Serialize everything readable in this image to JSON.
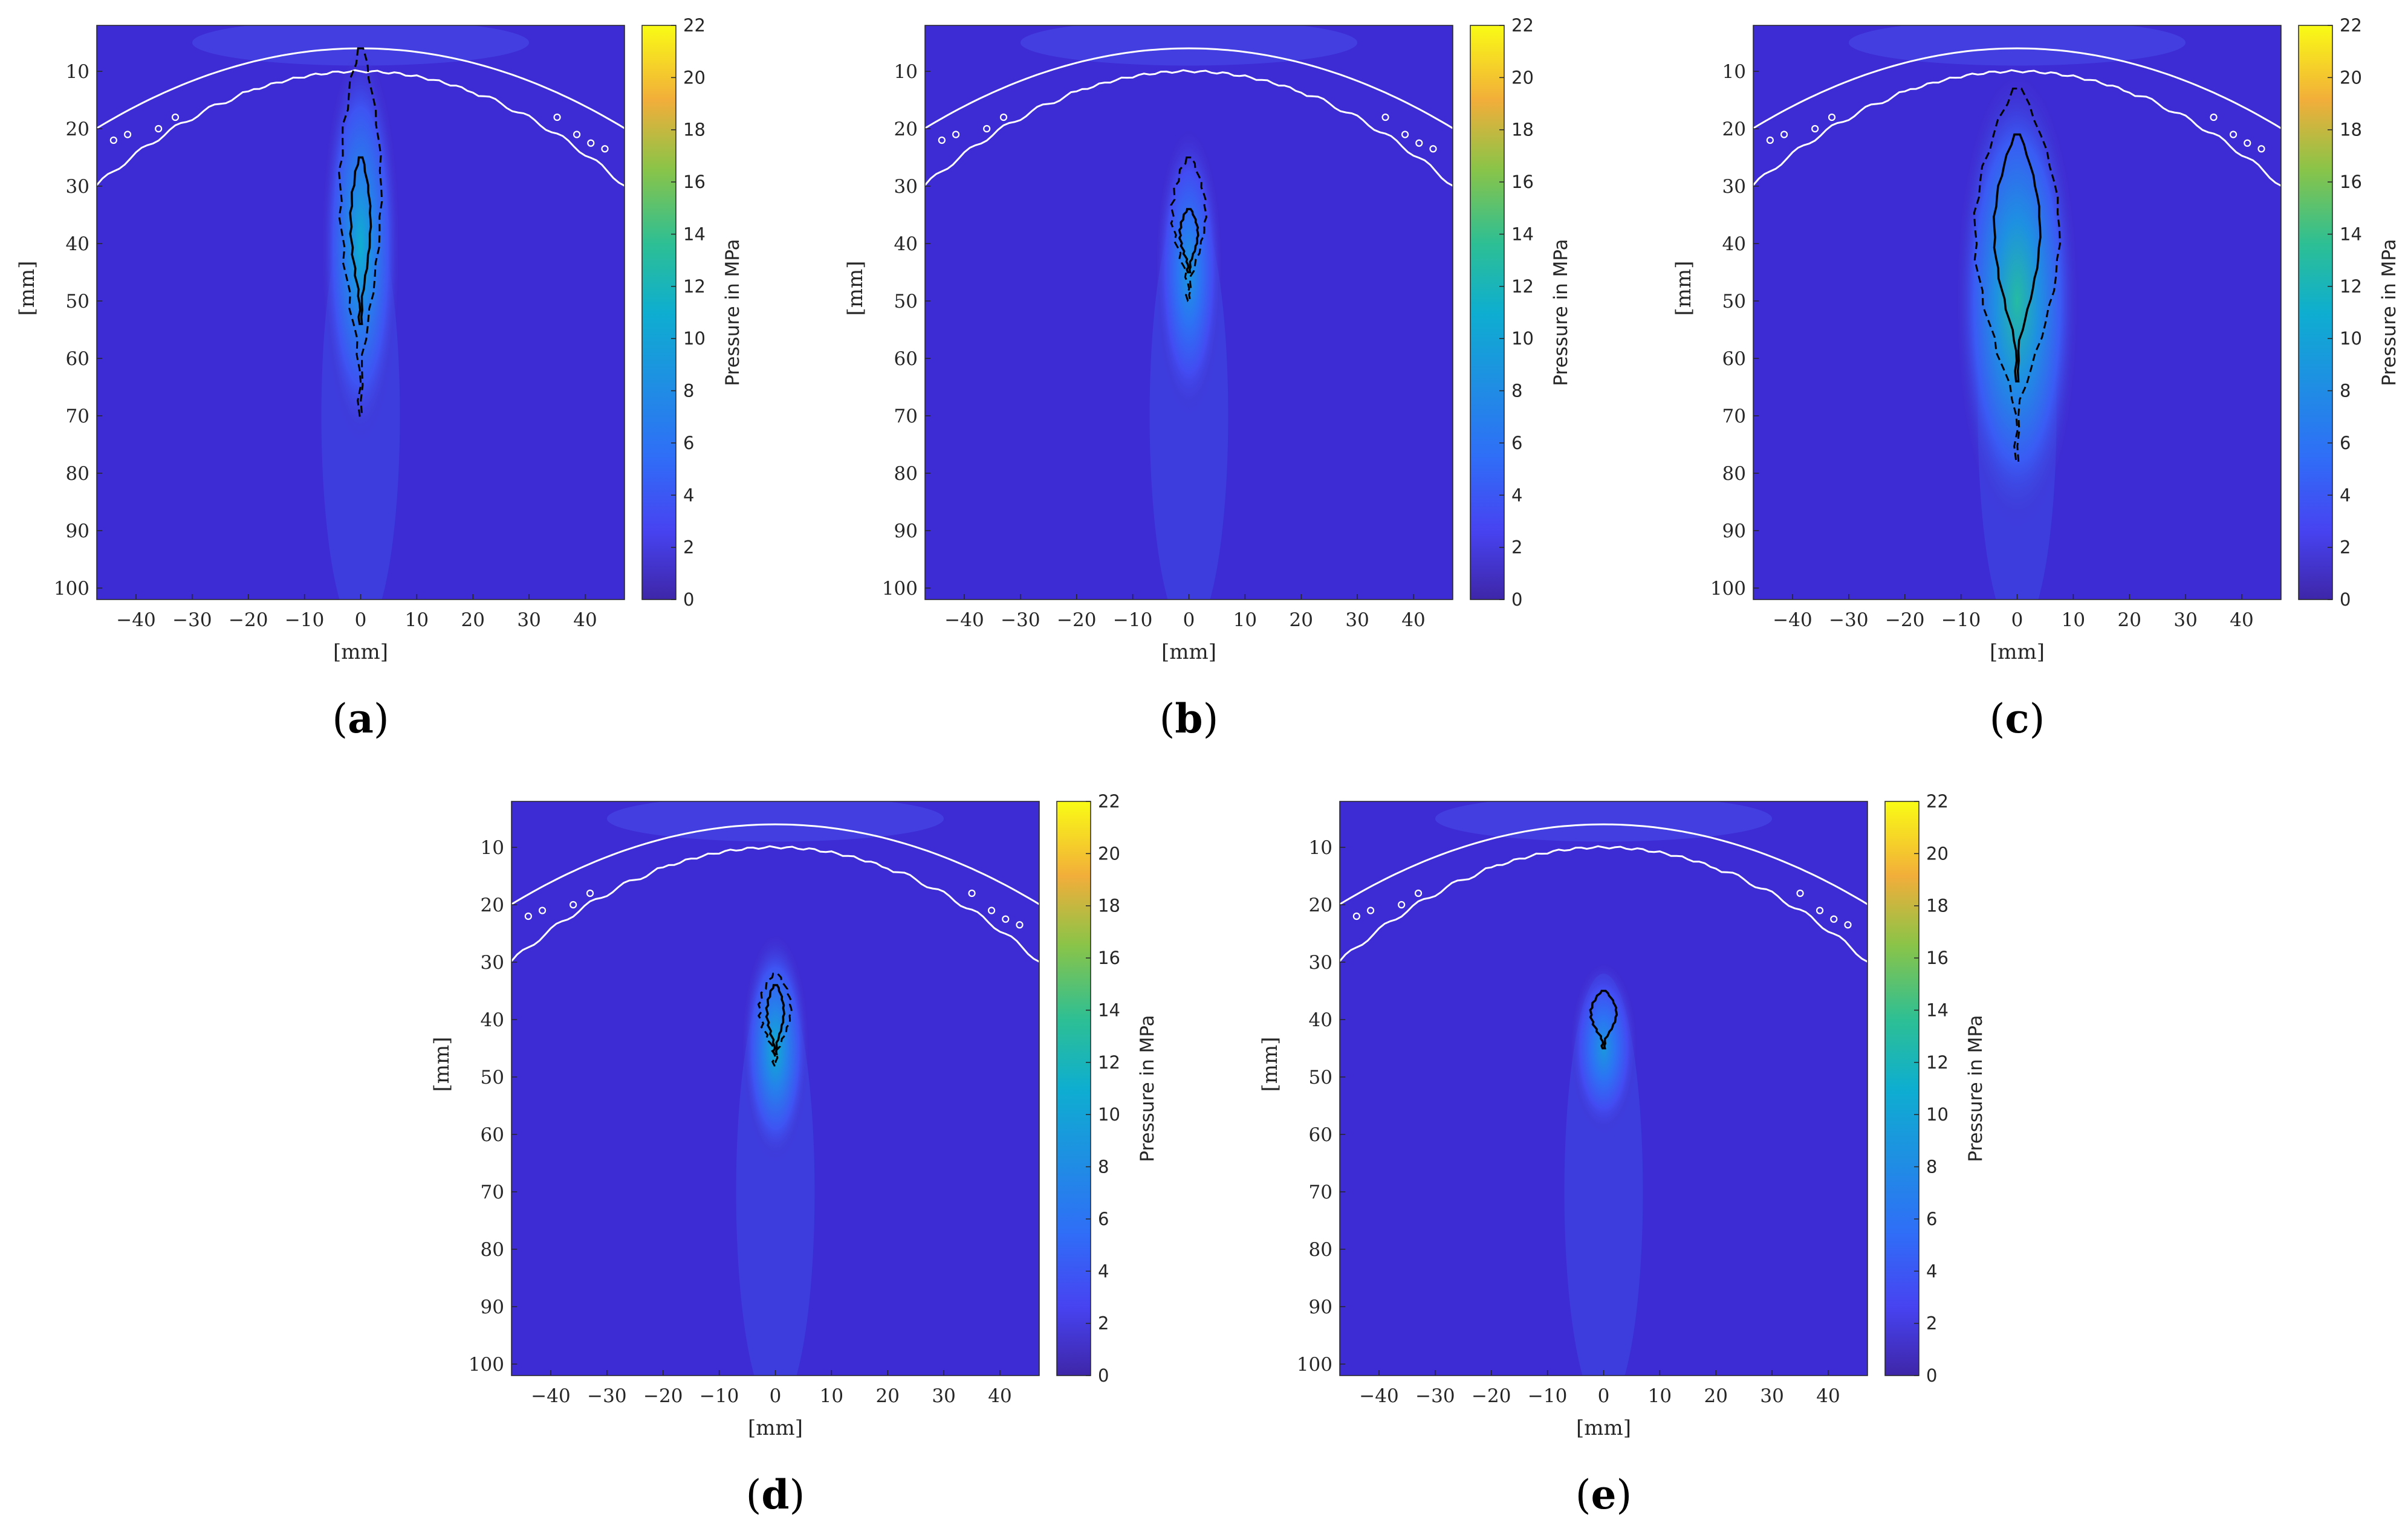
{
  "figure": {
    "colors": {
      "background_field": "#3d2bd3",
      "skull_outline": "#ffffff",
      "contour": "#000000"
    },
    "colorbar": {
      "label": "Pressure in MPa",
      "ticks": [
        "0",
        "2",
        "4",
        "6",
        "8",
        "10",
        "12",
        "14",
        "16",
        "18",
        "20",
        "22"
      ],
      "range": [
        0,
        22
      ],
      "colormap": "parula"
    }
  },
  "chart_data": [
    {
      "type": "heatmap",
      "panel": "a",
      "panel_label": "(a)",
      "xlabel": "[mm]",
      "ylabel": "[mm]",
      "xlim": [
        -47,
        47
      ],
      "ylim": [
        102,
        2
      ],
      "xticks": [
        "−40",
        "−30",
        "−20",
        "−10",
        "0",
        "10",
        "20",
        "30",
        "40"
      ],
      "yticks": [
        "10",
        "20",
        "30",
        "40",
        "50",
        "60",
        "70",
        "80",
        "90",
        "100"
      ],
      "focus": {
        "x_mm": 0,
        "y_top_mm": 6,
        "y_bottom_mm": 75,
        "peak_mpa": 11,
        "shape": "elongated"
      },
      "solid_contour": {
        "x_mm": 0,
        "y_top_mm": 25,
        "y_bottom_mm": 54,
        "half_width_mm": 1.8
      },
      "dashed_contour": {
        "x_mm": 0,
        "y_top_mm": 6,
        "y_bottom_mm": 70,
        "half_width_mm": 4
      }
    },
    {
      "type": "heatmap",
      "panel": "b",
      "panel_label": "(b)",
      "xlabel": "[mm]",
      "ylabel": "[mm]",
      "xlim": [
        -47,
        47
      ],
      "ylim": [
        102,
        2
      ],
      "xticks": [
        "−40",
        "−30",
        "−20",
        "−10",
        "0",
        "10",
        "20",
        "30",
        "40"
      ],
      "yticks": [
        "10",
        "20",
        "30",
        "40",
        "50",
        "60",
        "70",
        "80",
        "90",
        "100"
      ],
      "focus": {
        "x_mm": 0,
        "y_top_mm": 20,
        "y_bottom_mm": 70,
        "peak_mpa": 9,
        "shape": "compact"
      },
      "solid_contour": {
        "x_mm": 0,
        "y_top_mm": 34,
        "y_bottom_mm": 45,
        "half_width_mm": 1.6
      },
      "dashed_contour": {
        "x_mm": 0,
        "y_top_mm": 25,
        "y_bottom_mm": 50,
        "half_width_mm": 3.2
      }
    },
    {
      "type": "heatmap",
      "panel": "c",
      "panel_label": "(c)",
      "xlabel": "[mm]",
      "ylabel": "[mm]",
      "xlim": [
        -47,
        47
      ],
      "ylim": [
        102,
        2
      ],
      "xticks": [
        "−40",
        "−30",
        "−20",
        "−10",
        "0",
        "10",
        "20",
        "30",
        "40"
      ],
      "yticks": [
        "10",
        "20",
        "30",
        "40",
        "50",
        "60",
        "70",
        "80",
        "90",
        "100"
      ],
      "focus": {
        "x_mm": 0,
        "y_top_mm": 10,
        "y_bottom_mm": 90,
        "peak_mpa": 13,
        "shape": "wide"
      },
      "solid_contour": {
        "x_mm": 0,
        "y_top_mm": 21,
        "y_bottom_mm": 64,
        "half_width_mm": 4.5
      },
      "dashed_contour": {
        "x_mm": 0,
        "y_top_mm": 13,
        "y_bottom_mm": 78,
        "half_width_mm": 8.5
      }
    },
    {
      "type": "heatmap",
      "panel": "d",
      "panel_label": "(d)",
      "xlabel": "[mm]",
      "ylabel": "[mm]",
      "xlim": [
        -47,
        47
      ],
      "ylim": [
        102,
        2
      ],
      "xticks": [
        "−40",
        "−30",
        "−20",
        "−10",
        "0",
        "10",
        "20",
        "30",
        "40"
      ],
      "yticks": [
        "10",
        "20",
        "30",
        "40",
        "50",
        "60",
        "70",
        "80",
        "90",
        "100"
      ],
      "focus": {
        "x_mm": 0,
        "y_top_mm": 25,
        "y_bottom_mm": 65,
        "peak_mpa": 11,
        "shape": "compact"
      },
      "solid_contour": {
        "x_mm": 0,
        "y_top_mm": 34,
        "y_bottom_mm": 46,
        "half_width_mm": 1.5
      },
      "dashed_contour": {
        "x_mm": 0,
        "y_top_mm": 32,
        "y_bottom_mm": 48,
        "half_width_mm": 3
      }
    },
    {
      "type": "heatmap",
      "panel": "e",
      "panel_label": "(e)",
      "xlabel": "[mm]",
      "ylabel": "[mm]",
      "xlim": [
        -47,
        47
      ],
      "ylim": [
        102,
        2
      ],
      "xticks": [
        "−40",
        "−30",
        "−20",
        "−10",
        "0",
        "10",
        "20",
        "30",
        "40"
      ],
      "yticks": [
        "10",
        "20",
        "30",
        "40",
        "50",
        "60",
        "70",
        "80",
        "90",
        "100"
      ],
      "focus": {
        "x_mm": 0,
        "y_top_mm": 30,
        "y_bottom_mm": 60,
        "peak_mpa": 9,
        "shape": "compact"
      },
      "solid_contour": {
        "x_mm": 0,
        "y_top_mm": 35,
        "y_bottom_mm": 45,
        "half_width_mm": 2.4
      },
      "dashed_contour": null
    }
  ]
}
